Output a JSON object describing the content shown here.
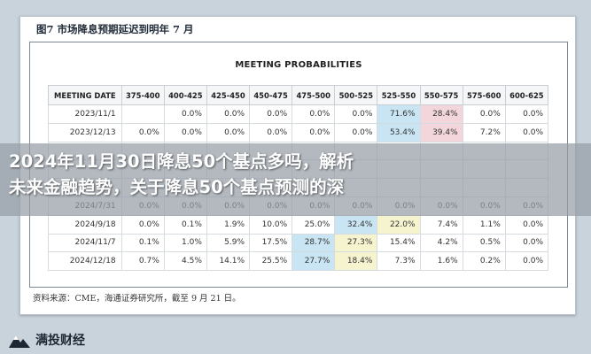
{
  "figure": {
    "title": "图7  市场降息预期延迟到明年 7 月",
    "table_heading": "MEETING PROBABILITIES",
    "columns": [
      "MEETING DATE",
      "375-400",
      "400-425",
      "425-450",
      "450-475",
      "475-500",
      "500-525",
      "525-550",
      "550-575",
      "575-600",
      "600-625"
    ],
    "rows": [
      {
        "date": "2023/11/1",
        "values": [
          "",
          "0.0%",
          "0.0%",
          "0.0%",
          "0.0%",
          "0.0%",
          "71.6%",
          "28.4%",
          "0.0%",
          "0.0%"
        ]
      },
      {
        "date": "2023/12/13",
        "values": [
          "0.0%",
          "0.0%",
          "0.0%",
          "0.0%",
          "0.0%",
          "0.0%",
          "53.4%",
          "39.4%",
          "7.2%",
          "0.0%"
        ]
      },
      {
        "date": "",
        "values": [
          "",
          "",
          "",
          "",
          "",
          "",
          "",
          "",
          "",
          ""
        ]
      },
      {
        "date": "",
        "values": [
          "",
          "",
          "",
          "",
          "",
          "",
          "",
          "",
          "",
          ""
        ]
      },
      {
        "date": "",
        "values": [
          "",
          "",
          "",
          "",
          "",
          "",
          "",
          "",
          "",
          ""
        ]
      },
      {
        "date": "2024/7/31",
        "values": [
          "0.0%",
          "0.0%",
          "0.0%",
          "0.0%",
          "0.0%",
          "0.0%",
          "0.0%",
          "0.0%",
          "0.0%",
          "0.0%"
        ]
      },
      {
        "date": "2024/9/18",
        "values": [
          "0.0%",
          "0.1%",
          "1.9%",
          "10.0%",
          "25.0%",
          "32.4%",
          "22.0%",
          "7.4%",
          "1.1%",
          "0.0%"
        ]
      },
      {
        "date": "2024/11/7",
        "values": [
          "0.1%",
          "1.0%",
          "5.9%",
          "17.5%",
          "28.7%",
          "27.3%",
          "15.4%",
          "4.2%",
          "0.5%",
          "0.0%"
        ]
      },
      {
        "date": "2024/12/18",
        "values": [
          "0.7%",
          "4.5%",
          "14.1%",
          "25.5%",
          "27.7%",
          "18.4%",
          "7.3%",
          "1.6%",
          "0.2%",
          "0.0%"
        ]
      }
    ],
    "highlights": [
      {
        "row": 0,
        "col": 6,
        "tone": "blue"
      },
      {
        "row": 0,
        "col": 7,
        "tone": "red"
      },
      {
        "row": 1,
        "col": 6,
        "tone": "blue"
      },
      {
        "row": 1,
        "col": 7,
        "tone": "red"
      },
      {
        "row": 6,
        "col": 5,
        "tone": "blue"
      },
      {
        "row": 6,
        "col": 6,
        "tone": "yellow"
      },
      {
        "row": 7,
        "col": 4,
        "tone": "blue"
      },
      {
        "row": 7,
        "col": 5,
        "tone": "yellow"
      },
      {
        "row": 8,
        "col": 4,
        "tone": "blue"
      },
      {
        "row": 8,
        "col": 5,
        "tone": "yellow"
      }
    ],
    "source": "资料来源：CME，海通证券研究所，截至 9 月 21 日。"
  },
  "headline": {
    "line1": "2024年11月30日降息50个基点多吗，解析",
    "line2": "未来金融趋势，关于降息50个基点预测的深"
  },
  "brand": {
    "name": "满投财经",
    "logo_icon": "mountain-logo-icon"
  },
  "colors": {
    "highlight_blue": "#c9e4f2",
    "highlight_red": "#f3d6dc",
    "highlight_yellow": "#f6f3cf",
    "overlay": "#969ea6"
  }
}
